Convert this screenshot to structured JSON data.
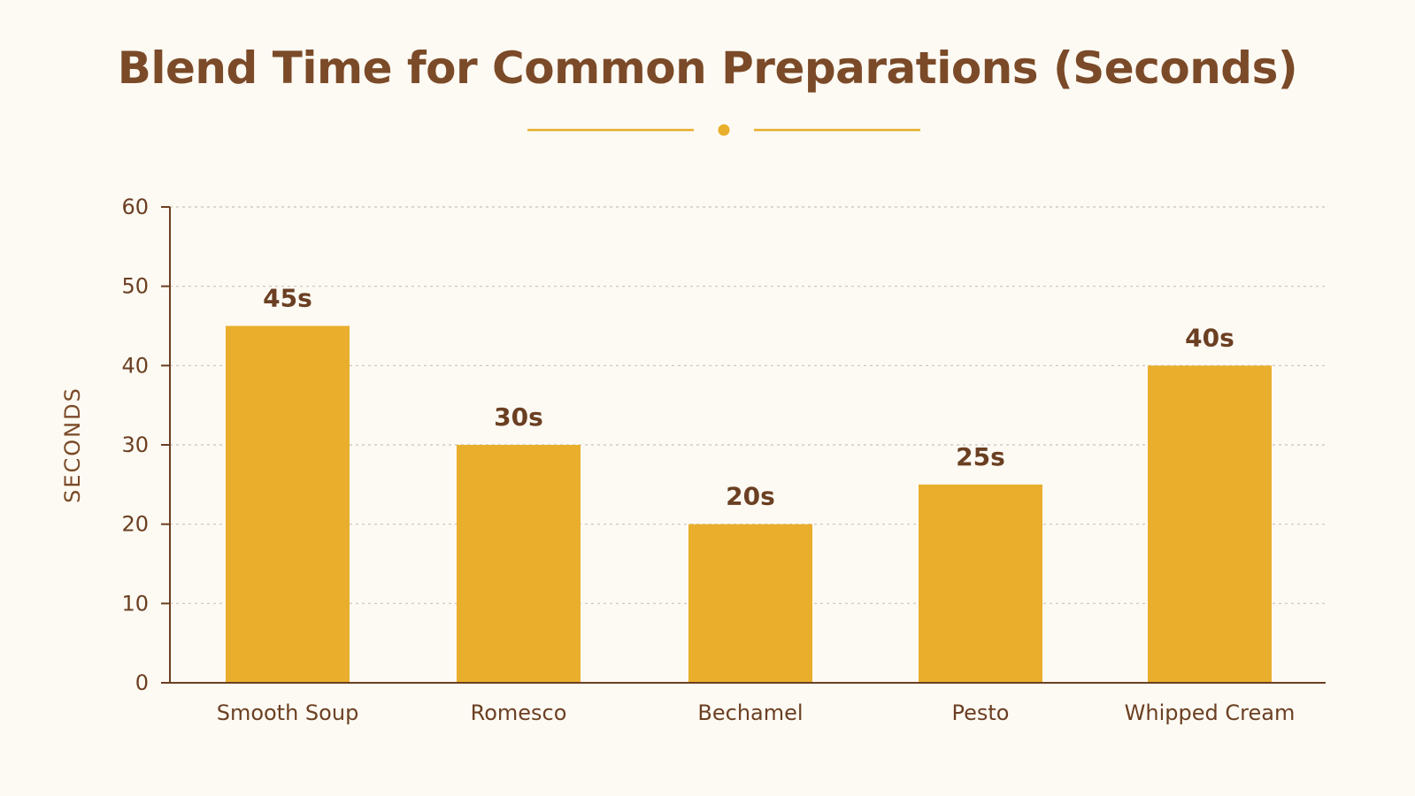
{
  "chart_data": {
    "type": "bar",
    "title": "Blend Time for Common Preparations (Seconds)",
    "ylabel": "SECONDS",
    "xlabel": "",
    "categories": [
      "Smooth Soup",
      "Romesco",
      "Bechamel",
      "Pesto",
      "Whipped Cream"
    ],
    "values": [
      45,
      30,
      20,
      25,
      40
    ],
    "data_labels": [
      "45s",
      "30s",
      "20s",
      "25s",
      "40s"
    ],
    "ylim": [
      0,
      60
    ],
    "yticks": [
      0,
      10,
      20,
      30,
      40,
      50,
      60
    ],
    "grid": true,
    "legend": "none"
  },
  "colors": {
    "bar": "#e9ae2b",
    "text": "#6b3f22",
    "title": "#7b4a28",
    "axis": "#6b3f22",
    "grid": "#c9c2b6",
    "ornament": "#e9ae2b",
    "background": "#fdfaf3"
  }
}
